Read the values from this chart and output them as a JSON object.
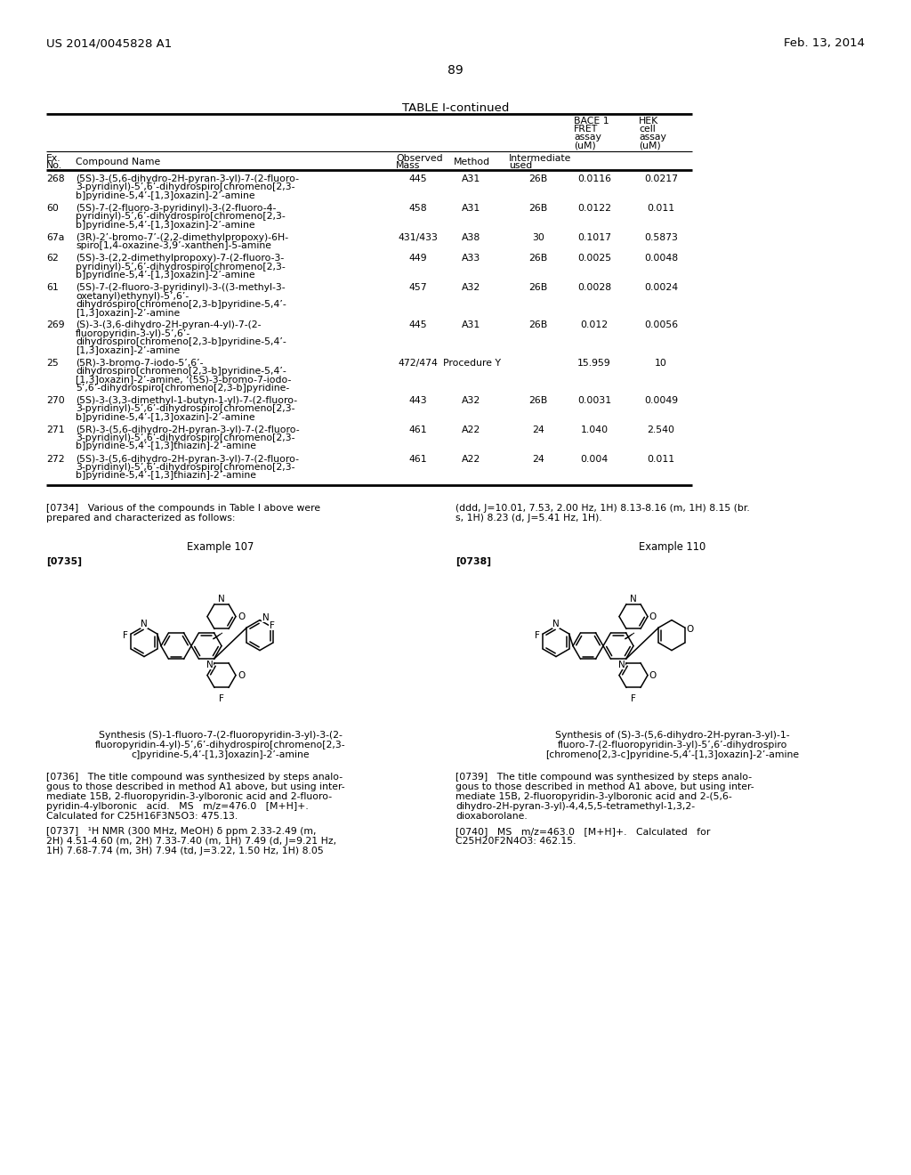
{
  "page_number": "89",
  "header_left": "US 2014/0045828 A1",
  "header_right": "Feb. 13, 2014",
  "table_title": "TABLE I-continued",
  "bg_color": "#ffffff",
  "text_color": "#000000",
  "table_rows": [
    {
      "ex_no": "268",
      "name_lines": [
        "(5S)-3-(5,6-dihydro-2H-pyran-3-yl)-7-(2-fluoro-",
        "3-pyridinyl)-5’,6’-dihydrospiro[chromeno[2,3-",
        "b]pyridine-5,4’-[1,3]oxazin]-2’-amine"
      ],
      "mass": "445",
      "method": "A31",
      "inter": "26B",
      "bace1": "0.0116",
      "hek": "0.0217"
    },
    {
      "ex_no": "60",
      "name_lines": [
        "(5S)-7-(2-fluoro-3-pyridinyl)-3-(2-fluoro-4-",
        "pyridinyl)-5’,6’-dihydrospiro[chromeno[2,3-",
        "b]pyridine-5,4’-[1,3]oxazin]-2’-amine"
      ],
      "mass": "458",
      "method": "A31",
      "inter": "26B",
      "bace1": "0.0122",
      "hek": "0.011"
    },
    {
      "ex_no": "67a",
      "name_lines": [
        "(3R)-2’-bromo-7’-(2,2-dimethylpropoxy)-6H-",
        "spiro[1,4-oxazine-3,9’-xanthen]-5-amine"
      ],
      "mass": "431/433",
      "method": "A38",
      "inter": "30",
      "bace1": "0.1017",
      "hek": "0.5873"
    },
    {
      "ex_no": "62",
      "name_lines": [
        "(5S)-3-(2,2-dimethylpropoxy)-7-(2-fluoro-3-",
        "pyridinyl)-5’,6’-dihydrospiro[chromeno[2,3-",
        "b]pyridine-5,4’-[1,3]oxazin]-2’-amine"
      ],
      "mass": "449",
      "method": "A33",
      "inter": "26B",
      "bace1": "0.0025",
      "hek": "0.0048"
    },
    {
      "ex_no": "61",
      "name_lines": [
        "(5S)-7-(2-fluoro-3-pyridinyl)-3-((3-methyl-3-",
        "oxetanyl)ethynyl)-5’,6’-",
        "dihydrospiro[chromeno[2,3-b]pyridine-5,4’-",
        "[1,3]oxazin]-2’-amine"
      ],
      "mass": "457",
      "method": "A32",
      "inter": "26B",
      "bace1": "0.0028",
      "hek": "0.0024"
    },
    {
      "ex_no": "269",
      "name_lines": [
        "(S)-3-(3,6-dihydro-2H-pyran-4-yl)-7-(2-",
        "fluoropyridin-3-yl)-5’,6’-",
        "dihydrospiro[chromeno[2,3-b]pyridine-5,4’-",
        "[1,3]oxazin]-2’-amine"
      ],
      "mass": "445",
      "method": "A31",
      "inter": "26B",
      "bace1": "0.012",
      "hek": "0.0056"
    },
    {
      "ex_no": "25",
      "name_lines": [
        "(5R)-3-bromo-7-iodo-5’,6’-",
        "dihydrospiro[chromeno[2,3-b]pyridine-5,4’-",
        "[1,3]oxazin]-2’-amine, ‘(5S)-3-bromo-7-iodo-",
        "5’,6’-dihydrospiro[chromeno[2,3-b]pyridine-"
      ],
      "mass": "472/474",
      "method": "Procedure Y",
      "inter": "",
      "bace1": "15.959",
      "hek": "10"
    },
    {
      "ex_no": "270",
      "name_lines": [
        "(5S)-3-(3,3-dimethyl-1-butyn-1-yl)-7-(2-fluoro-",
        "3-pyridinyl)-5’,6’-dihydrospiro[chromeno[2,3-",
        "b]pyridine-5,4’-[1,3]oxazin]-2’-amine"
      ],
      "mass": "443",
      "method": "A32",
      "inter": "26B",
      "bace1": "0.0031",
      "hek": "0.0049"
    },
    {
      "ex_no": "271",
      "name_lines": [
        "(5R)-3-(5,6-dihydro-2H-pyran-3-yl)-7-(2-fluoro-",
        "3-pyridinyl)-5’,6’-dihydrospiro[chromeno[2,3-",
        "b]pyridine-5,4’-[1,3]thiazin]-2’-amine"
      ],
      "mass": "461",
      "method": "A22",
      "inter": "24",
      "bace1": "1.040",
      "hek": "2.540"
    },
    {
      "ex_no": "272",
      "name_lines": [
        "(5S)-3-(5,6-dihydro-2H-pyran-3-yl)-7-(2-fluoro-",
        "3-pyridinyl)-5’,6’-dihydrospiro[chromeno[2,3-",
        "b]pyridine-5,4’-[1,3]thiazin]-2’-amine"
      ],
      "mass": "461",
      "method": "A22",
      "inter": "24",
      "bace1": "0.004",
      "hek": "0.011"
    }
  ],
  "para_0734_left_lines": [
    "[0734]   Various of the compounds in Table I above were",
    "prepared and characterized as follows:"
  ],
  "para_0734_right_lines": [
    "(ddd, J=10.01, 7.53, 2.00 Hz, 1H) 8.13-8.16 (m, 1H) 8.15 (br.",
    "s, 1H) 8.23 (d, J=5.41 Hz, 1H)."
  ],
  "example107": "Example 107",
  "example110": "Example 110",
  "lbl_0735": "[0735]",
  "lbl_0738": "[0738]",
  "synth107_lines": [
    "Synthesis (S)-1-fluoro-7-(2-fluoropyridin-3-yl)-3-(2-",
    "fluoropyridin-4-yl)-5’,6’-dihydrospiro[chromeno[2,3-",
    "c]pyridine-5,4’-[1,3]oxazin]-2’-amine"
  ],
  "synth110_lines": [
    "Synthesis of (S)-3-(5,6-dihydro-2H-pyran-3-yl)-1-",
    "fluoro-7-(2-fluoropyridin-3-yl)-5’,6’-dihydrospiro",
    "[chromeno[2,3-c]pyridine-5,4’-[1,3]oxazin]-2’-amine"
  ],
  "para_0736_lines": [
    "[0736]   The title compound was synthesized by steps analo-",
    "gous to those described in method A1 above, but using inter-",
    "mediate 15B, 2-fluoropyridin-3-ylboronic acid and 2-fluoro-",
    "pyridin-4-ylboronic   acid.   MS   m/z=476.0   [M+H]+.",
    "Calculated for C25H16F3N5O3: 475.13."
  ],
  "para_0737_lines": [
    "[0737]   ¹H NMR (300 MHz, MeOH) δ ppm 2.33-2.49 (m,",
    "2H) 4.51-4.60 (m, 2H) 7.33-7.40 (m, 1H) 7.49 (d, J=9.21 Hz,",
    "1H) 7.68-7.74 (m, 3H) 7.94 (td, J=3.22, 1.50 Hz, 1H) 8.05"
  ],
  "para_0739_lines": [
    "[0739]   The title compound was synthesized by steps analo-",
    "gous to those described in method A1 above, but using inter-",
    "mediate 15B, 2-fluoropyridin-3-ylboronic acid and 2-(5,6-",
    "dihydro-2H-pyran-3-yl)-4,4,5,5-tetramethyl-1,3,2-",
    "dioxaborolane."
  ],
  "para_0740_lines": [
    "[0740]   MS   m/z=463.0   [M+H]+.   Calculated   for",
    "C25H20F2N4O3: 462.15."
  ]
}
